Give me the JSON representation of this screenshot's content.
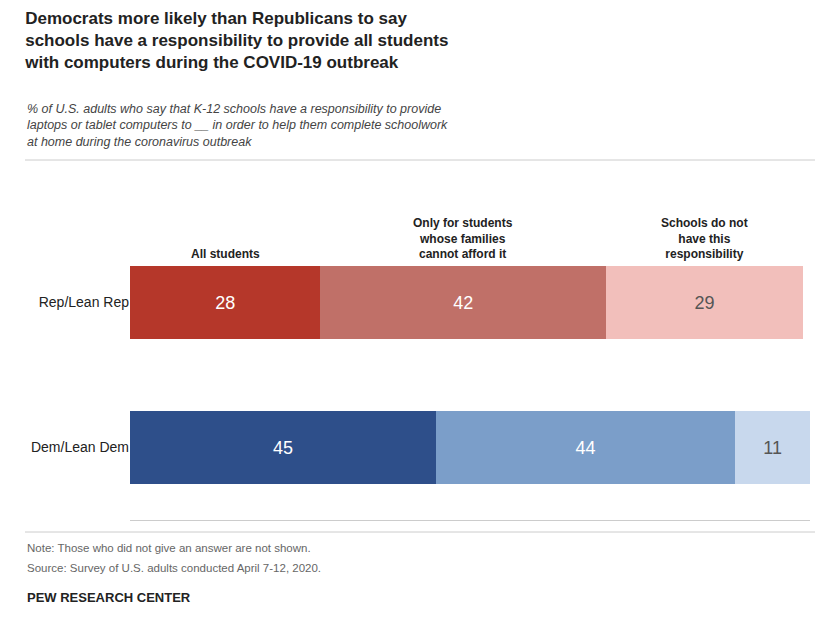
{
  "chart_data": {
    "type": "bar",
    "orientation": "horizontal",
    "stacked": true,
    "data_labels": true,
    "tick_labels": "y",
    "title": "Democrats more likely than Republicans to say\nschools have a responsibility to provide all students\nwith computers during the COVID-19 outbreak",
    "subtitle": "% of U.S. adults who say that K-12 schools have a responsibility to provide\nlaptops or tablet computers to __ in order to help them complete schoolwork\nat home during the coronavirus outbreak",
    "annotations": [
      "Note: Those who did not give an answer are not shown.",
      "Source: Survey of U.S. adults conducted April 7-12, 2020.",
      "PEW RESEARCH CENTER"
    ],
    "categories": [
      "Rep/Lean Rep",
      "Dem/Lean Dem"
    ],
    "series": [
      {
        "name": "All students",
        "colors": [
          "#b5372a",
          "#2e4f8a"
        ],
        "values": [
          28,
          45
        ]
      },
      {
        "name": "Only for students\nwhose families\ncannot afford it",
        "colors": [
          "#c07068",
          "#7b9ec9"
        ],
        "values": [
          42,
          44
        ]
      },
      {
        "name": "Schools do not\nhave this\nresponsibility",
        "colors": [
          "#f2bfbb",
          "#c8d8ed"
        ],
        "values": [
          29,
          11
        ]
      }
    ],
    "xlim": [
      0,
      100
    ]
  }
}
